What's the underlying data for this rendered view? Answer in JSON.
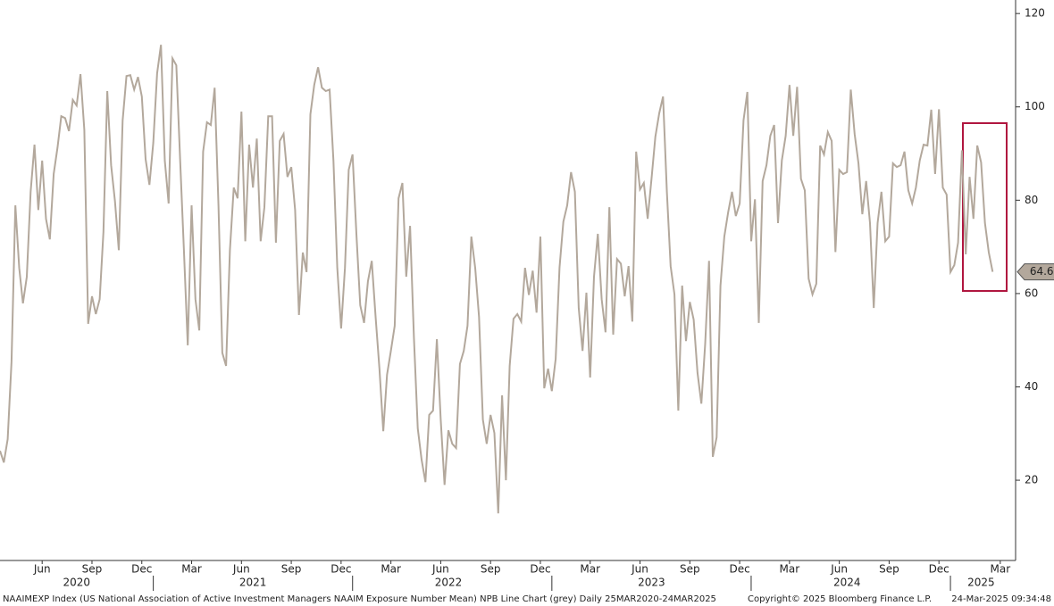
{
  "chart_data": {
    "type": "line",
    "footer": "NAAIMEXP Index (US National Association of Active Investment Managers NAAIM Exposure Number Mean) NPB Line Chart (grey)  Daily 25MAR2020-24MAR2025",
    "copyright": "Copyright© 2025 Bloomberg Finance L.P.",
    "timestamp": "24-Mar-2025 09:34:48",
    "color": "#b3a89c",
    "values": [
      26.3,
      23.8,
      28.8,
      45.4,
      78.9,
      65.5,
      57.9,
      63.6,
      81.8,
      91.9,
      77.9,
      88.5,
      76,
      71.6,
      85.6,
      91.3,
      98,
      97.6,
      94.8,
      101.5,
      100.3,
      107,
      95.1,
      53.5,
      59.4,
      55.6,
      58.8,
      73.2,
      103.4,
      87.5,
      79.8,
      69.3,
      97.1,
      106.6,
      106.8,
      103.7,
      106.4,
      102.2,
      88.8,
      83.3,
      92.3,
      107.2,
      113.3,
      88.5,
      79.3,
      110.4,
      108.9,
      88.5,
      69.3,
      48.9,
      78.9,
      58.8,
      52.1,
      90.4,
      96.7,
      96.1,
      104.1,
      78.9,
      47.3,
      44.5,
      69.3,
      82.7,
      80.4,
      99,
      71.2,
      91.9,
      82.7,
      93.2,
      71.2,
      78.5,
      98,
      98,
      70.9,
      92.7,
      94.2,
      85,
      87.1,
      77.9,
      55.4,
      68.8,
      64.6,
      98.4,
      104.7,
      108.5,
      104.1,
      103.4,
      103.7,
      88.5,
      65.5,
      52.5,
      65.5,
      86.5,
      89.8,
      72.8,
      57.5,
      53.7,
      62.6,
      67,
      55,
      43.9,
      30.5,
      42.6,
      47.7,
      53.1,
      80.4,
      83.7,
      63.6,
      74.5,
      50.6,
      31.1,
      24.4,
      19.6,
      34,
      34.9,
      50.2,
      33,
      19,
      30.7,
      27.8,
      26.9,
      44.9,
      47.7,
      53.1,
      72.2,
      65.5,
      55,
      33,
      27.8,
      34,
      30.1,
      12.9,
      38.2,
      20,
      44.5,
      54.6,
      55.6,
      54,
      65.5,
      59.7,
      64.9,
      55.9,
      72.2,
      39.7,
      43.9,
      39.1,
      46,
      65.5,
      75.4,
      78.9,
      86,
      81.8,
      56.9,
      47.7,
      60.2,
      42,
      63.6,
      72.8,
      58.8,
      51.7,
      78.5,
      51.2,
      67.4,
      66.4,
      59.4,
      65.9,
      54,
      90.4,
      82.3,
      83.7,
      76,
      84.6,
      93.6,
      98.6,
      102.2,
      81.8,
      65.9,
      59.8,
      34.9,
      61.7,
      49.8,
      58.2,
      54.4,
      43,
      36.4,
      49.3,
      67,
      25,
      29.2,
      61.7,
      72.2,
      77.4,
      81.8,
      76.6,
      79.3,
      97.1,
      103.2,
      71.2,
      80.2,
      53.7,
      84.1,
      87.5,
      93.8,
      96.1,
      75.1,
      88.5,
      93.8,
      104.7,
      93.8,
      104.3,
      84.6,
      82.1,
      63.2,
      59.8,
      62.1,
      91.7,
      89.8,
      94.6,
      92.7,
      68.9,
      86.5,
      85.6,
      86,
      103.7,
      94.2,
      87.9,
      77,
      84.1,
      75.1,
      56.9,
      75.1,
      81.8,
      71.2,
      72.2,
      87.9,
      87.1,
      87.5,
      90.4,
      82.1,
      79.3,
      82.7,
      88.5,
      91.9,
      91.7,
      99.4,
      85.6,
      99.5,
      82.7,
      81.2,
      64.6,
      66.1,
      70.9,
      90.7,
      68.4,
      85,
      76,
      91.7,
      88.1,
      75.1,
      68.8,
      64.64
    ],
    "xlim": [
      0,
      265
    ],
    "xticks": [
      {
        "value": 11,
        "label": "Jun"
      },
      {
        "value": 24,
        "label": "Sep"
      },
      {
        "value": 37,
        "label": "Dec"
      },
      {
        "value": 50,
        "label": "Mar"
      },
      {
        "value": 63,
        "label": "Jun"
      },
      {
        "value": 76,
        "label": "Sep"
      },
      {
        "value": 89,
        "label": "Dec"
      },
      {
        "value": 102,
        "label": "Mar"
      },
      {
        "value": 115,
        "label": "Jun"
      },
      {
        "value": 128,
        "label": "Sep"
      },
      {
        "value": 141,
        "label": "Dec"
      },
      {
        "value": 154,
        "label": "Mar"
      },
      {
        "value": 167,
        "label": "Jun"
      },
      {
        "value": 180,
        "label": "Sep"
      },
      {
        "value": 193,
        "label": "Dec"
      },
      {
        "value": 206,
        "label": "Mar"
      },
      {
        "value": 219,
        "label": "Jun"
      },
      {
        "value": 232,
        "label": "Sep"
      },
      {
        "value": 245,
        "label": "Dec"
      },
      {
        "value": 261,
        "label": "Mar"
      }
    ],
    "year_ticks": [
      {
        "value": 20,
        "label": "2020"
      },
      {
        "value": 66,
        "label": "2021"
      },
      {
        "value": 117,
        "label": "2022"
      },
      {
        "value": 170,
        "label": "2023"
      },
      {
        "value": 221,
        "label": "2024"
      },
      {
        "value": 256,
        "label": "2025"
      }
    ],
    "year_separators": [
      40,
      92,
      144,
      196,
      248
    ],
    "ylim": [
      2.8,
      122.9
    ],
    "yticks": [
      20,
      40,
      60,
      80,
      100,
      120
    ]
  }
}
